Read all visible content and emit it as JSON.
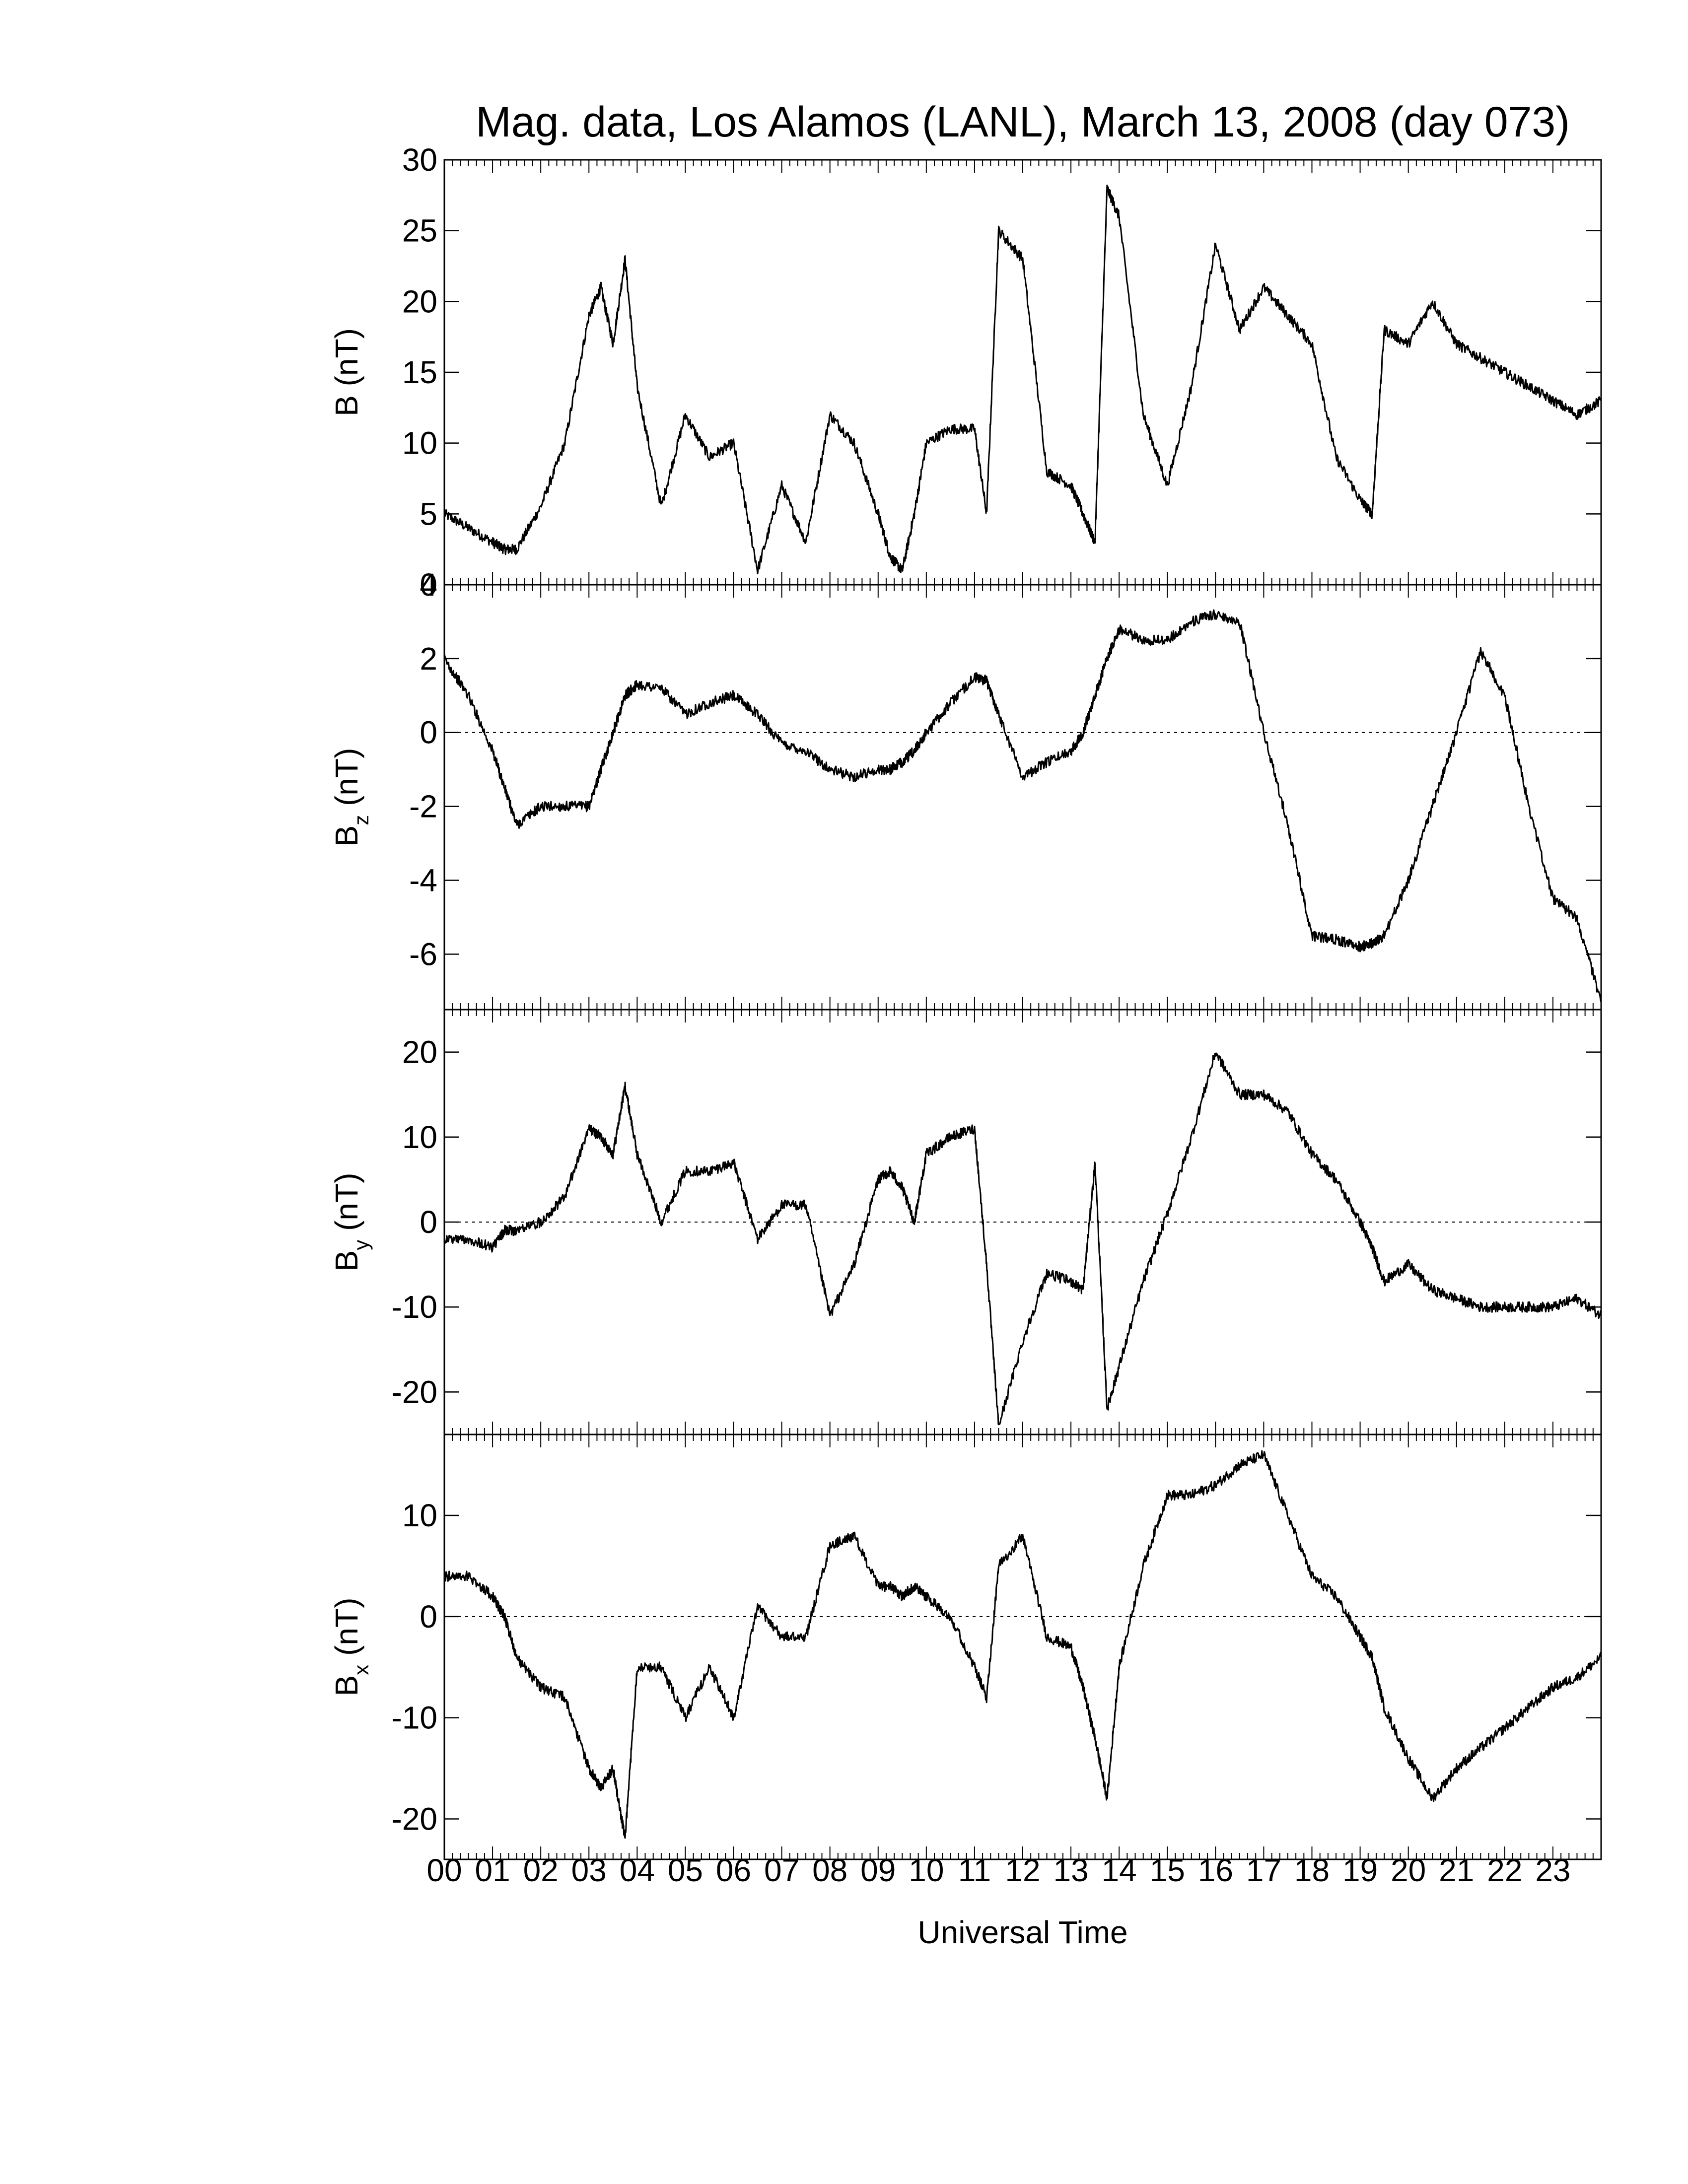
{
  "chart_data": {
    "type": "line",
    "title": "Mag. data, Los Alamos (LANL), March 13, 2008 (day 073)",
    "xlabel": "Universal Time",
    "x_unit": "hours UT",
    "xlim": [
      0,
      24
    ],
    "x_tick_labels": [
      "00",
      "01",
      "02",
      "03",
      "04",
      "05",
      "06",
      "07",
      "08",
      "09",
      "10",
      "11",
      "12",
      "13",
      "14",
      "15",
      "16",
      "17",
      "18",
      "19",
      "20",
      "21",
      "22",
      "23"
    ],
    "x": [
      0,
      0.5,
      1,
      1.25,
      1.5,
      2,
      2.5,
      3,
      3.25,
      3.5,
      3.75,
      4,
      4.5,
      5,
      5.5,
      6,
      6.5,
      7,
      7.5,
      8,
      8.5,
      9,
      9.25,
      9.5,
      9.75,
      10,
      10.5,
      11,
      11.25,
      11.5,
      12,
      12.5,
      13,
      13.25,
      13.5,
      13.75,
      14,
      14.5,
      15,
      15.5,
      16,
      16.5,
      17,
      17.5,
      18,
      18.5,
      19,
      19.25,
      19.5,
      20,
      20.5,
      21,
      21.5,
      22,
      22.5,
      23,
      23.5,
      24
    ],
    "grid": false,
    "panels": [
      {
        "name": "B",
        "ylabel_base": "B",
        "ylabel_sub": "",
        "ylabel_unit": " (nT)",
        "ylim": [
          0,
          30
        ],
        "yticks": [
          0,
          5,
          10,
          15,
          20,
          25,
          30
        ],
        "zero_line": false,
        "values": [
          5,
          4,
          3,
          2.5,
          2.5,
          5.5,
          10,
          19,
          21,
          17,
          23,
          14,
          5.5,
          12,
          9,
          10,
          1,
          7,
          3,
          12,
          10,
          5,
          2,
          1,
          5,
          10,
          11,
          11,
          5,
          25,
          23,
          8,
          7,
          5,
          3,
          28,
          26,
          12,
          7,
          14,
          24,
          18,
          21,
          19,
          17,
          9,
          6,
          5,
          18,
          17,
          20,
          17,
          16,
          15,
          14,
          13,
          12,
          13
        ]
      },
      {
        "name": "Bz",
        "ylabel_base": "B",
        "ylabel_sub": "z",
        "ylabel_unit": " (nT)",
        "ylim": [
          -7.5,
          4
        ],
        "yticks": [
          -6,
          -4,
          -2,
          0,
          2,
          4
        ],
        "zero_line": true,
        "values": [
          2,
          1,
          -0.5,
          -1.5,
          -2.5,
          -2,
          -2,
          -2,
          -1,
          0,
          1,
          1.3,
          1.2,
          0.5,
          0.8,
          1,
          0.5,
          -0.3,
          -0.5,
          -1,
          -1.2,
          -1,
          -1,
          -0.8,
          -0.5,
          0,
          0.8,
          1.5,
          1.4,
          0.5,
          -1.2,
          -0.8,
          -0.5,
          0,
          1,
          2,
          2.8,
          2.5,
          2.5,
          3,
          3.2,
          3,
          0,
          -2.5,
          -5.5,
          -5.6,
          -5.8,
          -5.7,
          -5.5,
          -4,
          -2,
          0,
          2.2,
          1,
          -2,
          -4.5,
          -5,
          -7.3
        ]
      },
      {
        "name": "By",
        "ylabel_base": "B",
        "ylabel_sub": "y",
        "ylabel_unit": " (nT)",
        "ylim": [
          -25,
          25
        ],
        "yticks": [
          -20,
          -10,
          0,
          10,
          20
        ],
        "zero_line": true,
        "values": [
          -2,
          -2,
          -3,
          -1,
          -1,
          0,
          3,
          11,
          10,
          8,
          16,
          8,
          0,
          6,
          6,
          7,
          -2,
          2,
          2,
          -11,
          -5,
          5,
          6,
          4,
          0,
          8,
          10,
          11,
          -5,
          -24,
          -14,
          -6,
          -7,
          -8,
          7,
          -22,
          -17,
          -7,
          1,
          10,
          20,
          15,
          15,
          13,
          8,
          5,
          0,
          -3,
          -7,
          -5,
          -8,
          -9,
          -10,
          -10,
          -10,
          -10,
          -9,
          -11
        ]
      },
      {
        "name": "Bx",
        "ylabel_base": "B",
        "ylabel_sub": "x",
        "ylabel_unit": " (nT)",
        "ylim": [
          -24,
          18
        ],
        "yticks": [
          -20,
          -10,
          0,
          10
        ],
        "zero_line": true,
        "values": [
          4,
          4,
          2,
          0,
          -4,
          -7,
          -8,
          -15,
          -17,
          -15,
          -22,
          -5,
          -5,
          -10,
          -5,
          -10,
          1,
          -2,
          -2,
          7,
          8,
          3,
          3,
          2,
          3,
          2,
          0,
          -5,
          -8,
          5,
          8,
          -2,
          -3,
          -7,
          -12,
          -18,
          -5,
          5,
          12,
          12,
          13,
          15,
          16,
          10,
          4,
          2,
          -2,
          -4,
          -9,
          -14,
          -18,
          -15,
          -13,
          -11,
          -9,
          -7,
          -6,
          -4
        ]
      }
    ]
  }
}
